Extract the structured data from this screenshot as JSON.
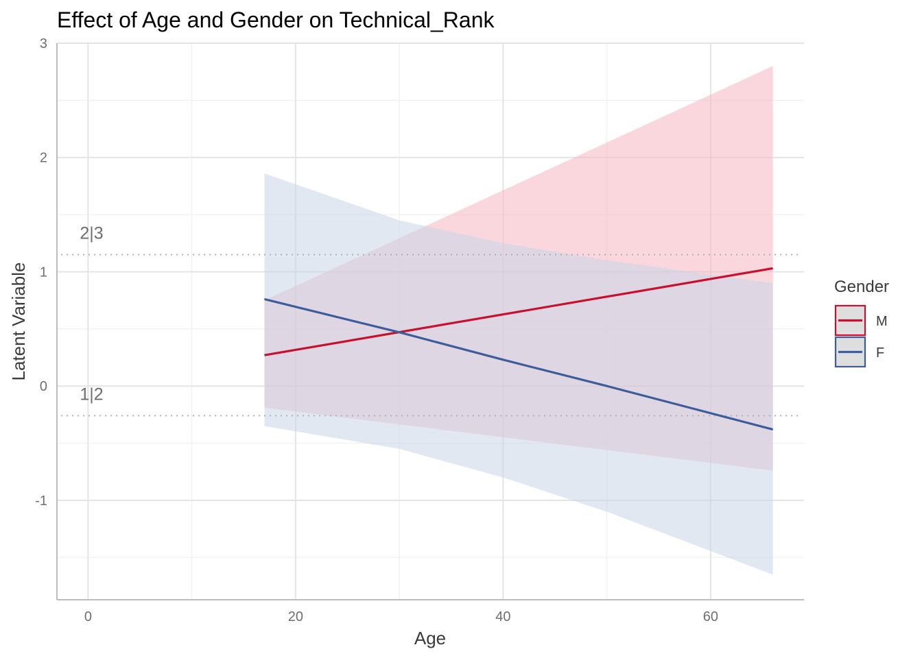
{
  "chart_data": {
    "type": "line",
    "title": "Effect of Age and Gender on Technical_Rank",
    "xlabel": "Age",
    "ylabel": "Latent Variable",
    "xlim": [
      -3,
      69
    ],
    "ylim": [
      -1.87,
      3.0
    ],
    "xticks": [
      0,
      20,
      40,
      60
    ],
    "yticks": [
      -1,
      0,
      1,
      2,
      3
    ],
    "xtick_labels": [
      "0",
      "20",
      "40",
      "60"
    ],
    "ytick_labels": [
      "-1",
      "0",
      "1",
      "2",
      "3"
    ],
    "grid": true,
    "legend": {
      "title": "Gender",
      "position": "right"
    },
    "thresholds": [
      {
        "label": "2|3",
        "value": 1.15
      },
      {
        "label": "1|2",
        "value": -0.26
      }
    ],
    "series": [
      {
        "name": "M",
        "color": "#c8102e",
        "band_color": "#f4b6bf",
        "x": [
          17,
          66
        ],
        "y": [
          0.27,
          1.03
        ],
        "lower": [
          -0.19,
          -0.74
        ],
        "upper": [
          0.75,
          2.8
        ]
      },
      {
        "name": "F",
        "color": "#3e5c9a",
        "band_color": "#c9d5e8",
        "x": [
          17,
          30,
          40,
          50,
          66
        ],
        "y": [
          0.76,
          0.47,
          0.23,
          0.0,
          -0.38
        ],
        "lower": [
          -0.35,
          -0.55,
          -0.8,
          -1.1,
          -1.65
        ],
        "upper": [
          1.86,
          1.45,
          1.25,
          1.1,
          0.9
        ]
      }
    ]
  }
}
